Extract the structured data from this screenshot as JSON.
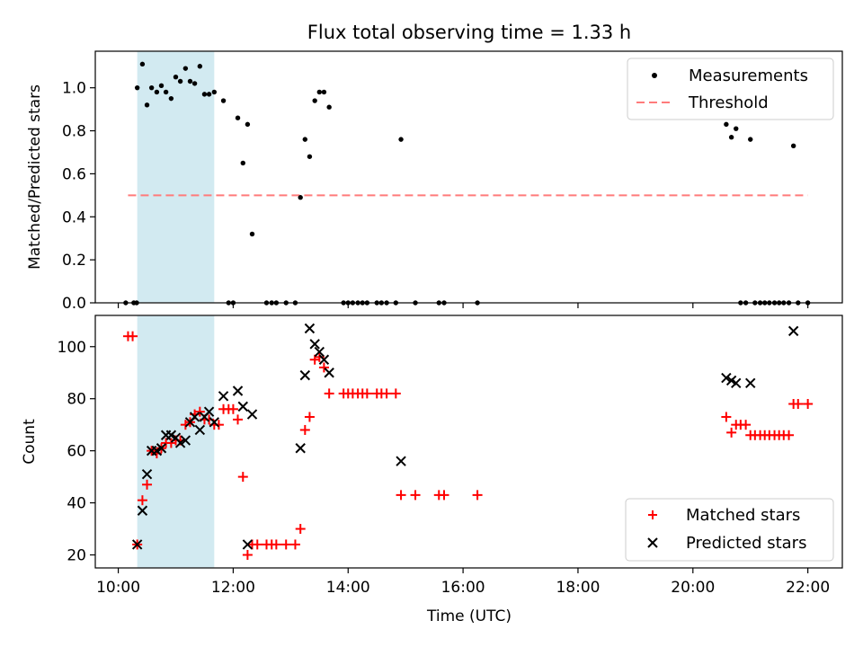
{
  "chart_data": [
    {
      "type": "scatter",
      "title": "Flux total observing time = 1.33 h",
      "xlabel": "",
      "ylabel": "Matched/Predicted stars",
      "x_unit": "hours UTC",
      "xlim": [
        9.6,
        22.6
      ],
      "ylim": [
        0,
        1.17
      ],
      "yticks": [
        0.0,
        0.2,
        0.4,
        0.6,
        0.8,
        1.0
      ],
      "ytick_labels": [
        "0.0",
        "0.2",
        "0.4",
        "0.6",
        "0.8",
        "1.0"
      ],
      "legend": "top-right",
      "shaded_interval": {
        "x": [
          10.33,
          11.67
        ],
        "color": "#add8e6"
      },
      "series": [
        {
          "name": "Measurements",
          "marker": "dot",
          "color": "#000000",
          "points": [
            [
              10.13,
              0
            ],
            [
              10.27,
              0
            ],
            [
              10.32,
              0
            ],
            [
              10.33,
              1.0
            ],
            [
              10.42,
              1.11
            ],
            [
              10.5,
              0.92
            ],
            [
              10.58,
              1.0
            ],
            [
              10.67,
              0.98
            ],
            [
              10.75,
              1.01
            ],
            [
              10.83,
              0.98
            ],
            [
              10.92,
              0.95
            ],
            [
              11.0,
              1.05
            ],
            [
              11.08,
              1.03
            ],
            [
              11.17,
              1.09
            ],
            [
              11.25,
              1.03
            ],
            [
              11.33,
              1.02
            ],
            [
              11.42,
              1.1
            ],
            [
              11.5,
              0.97
            ],
            [
              11.58,
              0.97
            ],
            [
              11.67,
              0.98
            ],
            [
              11.83,
              0.94
            ],
            [
              11.92,
              0
            ],
            [
              12.0,
              0
            ],
            [
              12.08,
              0.86
            ],
            [
              12.17,
              0.65
            ],
            [
              12.25,
              0.83
            ],
            [
              12.33,
              0.32
            ],
            [
              12.58,
              0
            ],
            [
              12.67,
              0
            ],
            [
              12.75,
              0
            ],
            [
              12.92,
              0
            ],
            [
              13.08,
              0
            ],
            [
              13.17,
              0.49
            ],
            [
              13.25,
              0.76
            ],
            [
              13.33,
              0.68
            ],
            [
              13.42,
              0.94
            ],
            [
              13.5,
              0.98
            ],
            [
              13.58,
              0.98
            ],
            [
              13.67,
              0.91
            ],
            [
              13.92,
              0
            ],
            [
              14.0,
              0
            ],
            [
              14.08,
              0
            ],
            [
              14.17,
              0
            ],
            [
              14.25,
              0
            ],
            [
              14.33,
              0
            ],
            [
              14.5,
              0
            ],
            [
              14.58,
              0
            ],
            [
              14.67,
              0
            ],
            [
              14.83,
              0
            ],
            [
              14.92,
              0.76
            ],
            [
              15.17,
              0
            ],
            [
              15.58,
              0
            ],
            [
              15.67,
              0
            ],
            [
              16.25,
              0
            ],
            [
              20.58,
              0.83
            ],
            [
              20.67,
              0.77
            ],
            [
              20.75,
              0.81
            ],
            [
              20.83,
              0
            ],
            [
              20.92,
              0
            ],
            [
              21.0,
              0.76
            ],
            [
              21.08,
              0
            ],
            [
              21.17,
              0
            ],
            [
              21.25,
              0
            ],
            [
              21.33,
              0
            ],
            [
              21.42,
              0
            ],
            [
              21.5,
              0
            ],
            [
              21.58,
              0
            ],
            [
              21.67,
              0
            ],
            [
              21.75,
              0.73
            ],
            [
              21.83,
              0
            ],
            [
              22.0,
              0
            ]
          ]
        },
        {
          "name": "Threshold",
          "marker": "dashed-line",
          "color": "#ff7b7b",
          "points": [
            [
              10.17,
              0.5
            ],
            [
              22.0,
              0.5
            ]
          ]
        }
      ]
    },
    {
      "type": "scatter",
      "title": "",
      "xlabel": "Time (UTC)",
      "ylabel": "Count",
      "x_unit": "hours UTC",
      "xlim": [
        9.6,
        22.6
      ],
      "ylim": [
        15,
        112
      ],
      "xticks": [
        10,
        12,
        14,
        16,
        18,
        20,
        22
      ],
      "xtick_labels": [
        "10:00",
        "12:00",
        "14:00",
        "16:00",
        "18:00",
        "20:00",
        "22:00"
      ],
      "yticks": [
        20,
        40,
        60,
        80,
        100
      ],
      "ytick_labels": [
        "20",
        "40",
        "60",
        "80",
        "100"
      ],
      "legend": "bottom-right",
      "shaded_interval": {
        "x": [
          10.33,
          11.67
        ],
        "color": "#add8e6"
      },
      "series": [
        {
          "name": "Matched stars",
          "marker": "plus",
          "color": "#ff0000",
          "points": [
            [
              10.17,
              104
            ],
            [
              10.25,
              104
            ],
            [
              10.33,
              24
            ],
            [
              10.42,
              41
            ],
            [
              10.5,
              47
            ],
            [
              10.58,
              60
            ],
            [
              10.67,
              59
            ],
            [
              10.75,
              61
            ],
            [
              10.83,
              63
            ],
            [
              10.92,
              63
            ],
            [
              11.0,
              64
            ],
            [
              11.08,
              64
            ],
            [
              11.17,
              70
            ],
            [
              11.25,
              71
            ],
            [
              11.33,
              74
            ],
            [
              11.42,
              75
            ],
            [
              11.5,
              72
            ],
            [
              11.58,
              72
            ],
            [
              11.67,
              70
            ],
            [
              11.75,
              70
            ],
            [
              11.83,
              76
            ],
            [
              11.92,
              76
            ],
            [
              12.0,
              76
            ],
            [
              12.08,
              72
            ],
            [
              12.17,
              50
            ],
            [
              12.25,
              20
            ],
            [
              12.33,
              24
            ],
            [
              12.42,
              24
            ],
            [
              12.58,
              24
            ],
            [
              12.67,
              24
            ],
            [
              12.75,
              24
            ],
            [
              12.92,
              24
            ],
            [
              13.08,
              24
            ],
            [
              13.17,
              30
            ],
            [
              13.25,
              68
            ],
            [
              13.33,
              73
            ],
            [
              13.42,
              95
            ],
            [
              13.5,
              96
            ],
            [
              13.58,
              92
            ],
            [
              13.67,
              82
            ],
            [
              13.92,
              82
            ],
            [
              14.0,
              82
            ],
            [
              14.08,
              82
            ],
            [
              14.17,
              82
            ],
            [
              14.25,
              82
            ],
            [
              14.33,
              82
            ],
            [
              14.5,
              82
            ],
            [
              14.58,
              82
            ],
            [
              14.67,
              82
            ],
            [
              14.83,
              82
            ],
            [
              14.92,
              43
            ],
            [
              15.17,
              43
            ],
            [
              15.58,
              43
            ],
            [
              15.67,
              43
            ],
            [
              16.25,
              43
            ],
            [
              20.58,
              73
            ],
            [
              20.67,
              67
            ],
            [
              20.75,
              70
            ],
            [
              20.83,
              70
            ],
            [
              20.92,
              70
            ],
            [
              21.0,
              66
            ],
            [
              21.08,
              66
            ],
            [
              21.17,
              66
            ],
            [
              21.25,
              66
            ],
            [
              21.33,
              66
            ],
            [
              21.42,
              66
            ],
            [
              21.5,
              66
            ],
            [
              21.58,
              66
            ],
            [
              21.67,
              66
            ],
            [
              21.75,
              78
            ],
            [
              21.83,
              78
            ],
            [
              22.0,
              78
            ]
          ]
        },
        {
          "name": "Predicted stars",
          "marker": "x",
          "color": "#000000",
          "points": [
            [
              10.33,
              24
            ],
            [
              10.42,
              37
            ],
            [
              10.5,
              51
            ],
            [
              10.58,
              60
            ],
            [
              10.67,
              60
            ],
            [
              10.75,
              61
            ],
            [
              10.83,
              66
            ],
            [
              10.92,
              66
            ],
            [
              11.0,
              65
            ],
            [
              11.08,
              63
            ],
            [
              11.17,
              64
            ],
            [
              11.25,
              71
            ],
            [
              11.33,
              73
            ],
            [
              11.42,
              68
            ],
            [
              11.5,
              73
            ],
            [
              11.58,
              75
            ],
            [
              11.67,
              71
            ],
            [
              11.83,
              81
            ],
            [
              12.08,
              83
            ],
            [
              12.17,
              77
            ],
            [
              12.25,
              24
            ],
            [
              12.33,
              74
            ],
            [
              13.17,
              61
            ],
            [
              13.25,
              89
            ],
            [
              13.33,
              107
            ],
            [
              13.42,
              101
            ],
            [
              13.5,
              98
            ],
            [
              13.58,
              95
            ],
            [
              13.67,
              90
            ],
            [
              14.92,
              56
            ],
            [
              20.58,
              88
            ],
            [
              20.67,
              87
            ],
            [
              20.75,
              86
            ],
            [
              21.0,
              86
            ],
            [
              21.75,
              106
            ]
          ]
        }
      ]
    }
  ]
}
